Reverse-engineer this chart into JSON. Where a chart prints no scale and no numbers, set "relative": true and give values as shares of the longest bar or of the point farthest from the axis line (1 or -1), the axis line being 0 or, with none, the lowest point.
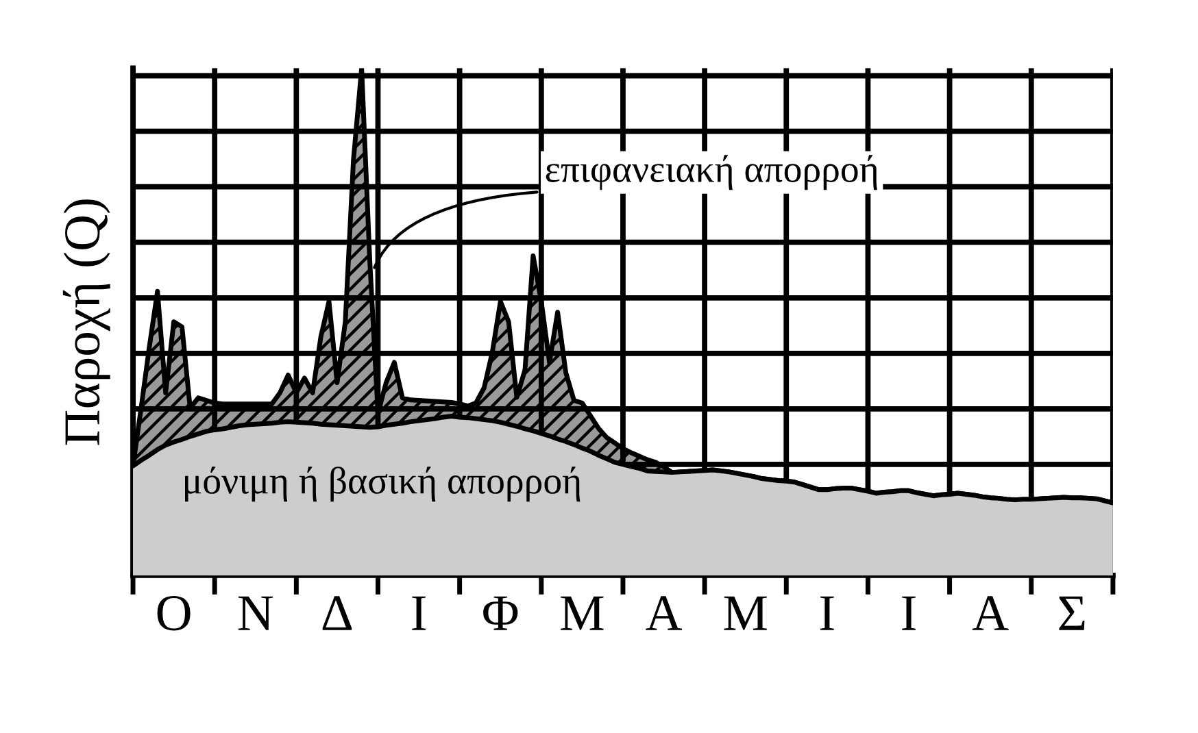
{
  "chart_data": {
    "type": "area",
    "relative": true,
    "ylabel": "Παροχή (Q)",
    "categories": [
      null,
      null,
      null,
      null,
      null,
      "Ο",
      null,
      null,
      null,
      null,
      null,
      null,
      null,
      null,
      null,
      "Ν",
      null,
      null,
      null,
      null,
      null,
      null,
      null,
      null,
      null,
      "Δ",
      null,
      null,
      null,
      null,
      null,
      null,
      null,
      null,
      null,
      "Ι",
      null,
      null,
      null,
      null,
      null,
      null,
      null,
      null,
      null,
      "Φ",
      null,
      null,
      null,
      null,
      null,
      null,
      null,
      null,
      null,
      "Μ",
      null,
      null,
      null,
      null,
      null,
      null,
      null,
      null,
      null,
      "Α",
      null,
      null,
      null,
      null,
      null,
      null,
      null,
      null,
      null,
      "Μ",
      null,
      null,
      null,
      null,
      null,
      null,
      null,
      null,
      null,
      "Ι",
      null,
      null,
      null,
      null,
      null,
      null,
      null,
      null,
      null,
      "Ι",
      null,
      null,
      null,
      null,
      null,
      null,
      null,
      null,
      null,
      "Α",
      null,
      null,
      null,
      null,
      null,
      null,
      null,
      null,
      null,
      "Σ",
      null,
      null,
      null,
      null,
      null
    ],
    "grid": true,
    "series": [
      {
        "color": "#9a9a9a",
        "values": [
          0.216,
          0.33,
          0.45,
          0.56,
          0.36,
          0.5,
          0.49,
          0.33,
          0.35,
          0.345,
          0.34,
          0.338,
          0.338,
          0.338,
          0.338,
          0.338,
          0.338,
          0.338,
          0.36,
          0.395,
          0.36,
          0.389,
          0.36,
          0.47,
          0.54,
          0.38,
          0.5,
          0.82,
          1.0,
          0.62,
          0.32,
          0.38,
          0.42,
          0.35,
          0.346,
          0.345,
          0.344,
          0.343,
          0.342,
          0.341,
          0.338,
          0.334,
          0.34,
          0.37,
          0.44,
          0.54,
          0.5,
          0.351,
          0.405,
          0.63,
          0.54,
          0.42,
          0.519,
          0.4,
          0.345,
          0.34,
          0.315,
          0.29,
          0.272,
          0.261,
          0.25,
          0.242,
          0.235,
          0.228,
          0.223,
          0.214,
          0.203,
          0.204,
          0.205,
          0.206,
          0.207,
          0.208,
          0.206,
          0.204,
          0.201,
          0.198,
          0.195,
          0.191,
          0.189,
          0.187,
          0.186,
          0.184,
          0.179,
          0.174,
          0.169,
          0.169,
          0.171,
          0.172,
          0.172,
          0.169,
          0.166,
          0.162,
          0.164,
          0.165,
          0.167,
          0.167,
          0.163,
          0.16,
          0.157,
          0.159,
          0.16,
          0.162,
          0.16,
          0.158,
          0.155,
          0.153,
          0.152,
          0.15,
          0.149,
          0.15,
          0.15,
          0.151,
          0.152,
          0.153,
          0.154,
          0.153,
          0.153,
          0.152,
          0.151,
          0.147,
          0.143
        ]
      },
      {
        "color": "#cdcdcd",
        "values": [
          0.216,
          0.227,
          0.237,
          0.248,
          0.257,
          0.263,
          0.268,
          0.274,
          0.279,
          0.284,
          0.287,
          0.289,
          0.292,
          0.295,
          0.297,
          0.298,
          0.299,
          0.3,
          0.302,
          0.303,
          0.302,
          0.301,
          0.3,
          0.298,
          0.297,
          0.296,
          0.295,
          0.294,
          0.293,
          0.292,
          0.293,
          0.296,
          0.298,
          0.3,
          0.303,
          0.305,
          0.307,
          0.309,
          0.312,
          0.314,
          0.312,
          0.311,
          0.309,
          0.307,
          0.305,
          0.302,
          0.298,
          0.294,
          0.289,
          0.285,
          0.28,
          0.275,
          0.269,
          0.264,
          0.258,
          0.251,
          0.245,
          0.237,
          0.23,
          0.223,
          0.219,
          0.215,
          0.211,
          0.206,
          0.205,
          0.204,
          0.203,
          0.204,
          0.205,
          0.206,
          0.207,
          0.208,
          0.206,
          0.204,
          0.201,
          0.198,
          0.195,
          0.191,
          0.189,
          0.187,
          0.186,
          0.184,
          0.179,
          0.174,
          0.169,
          0.169,
          0.171,
          0.172,
          0.172,
          0.169,
          0.166,
          0.162,
          0.164,
          0.165,
          0.167,
          0.167,
          0.163,
          0.16,
          0.157,
          0.159,
          0.16,
          0.162,
          0.16,
          0.158,
          0.155,
          0.153,
          0.152,
          0.15,
          0.149,
          0.15,
          0.15,
          0.151,
          0.152,
          0.153,
          0.154,
          0.153,
          0.153,
          0.152,
          0.151,
          0.147,
          0.143
        ]
      }
    ],
    "annotations": [
      "επιφανειακή απορροή",
      "μόνιμη ή βασική απορροή"
    ]
  }
}
